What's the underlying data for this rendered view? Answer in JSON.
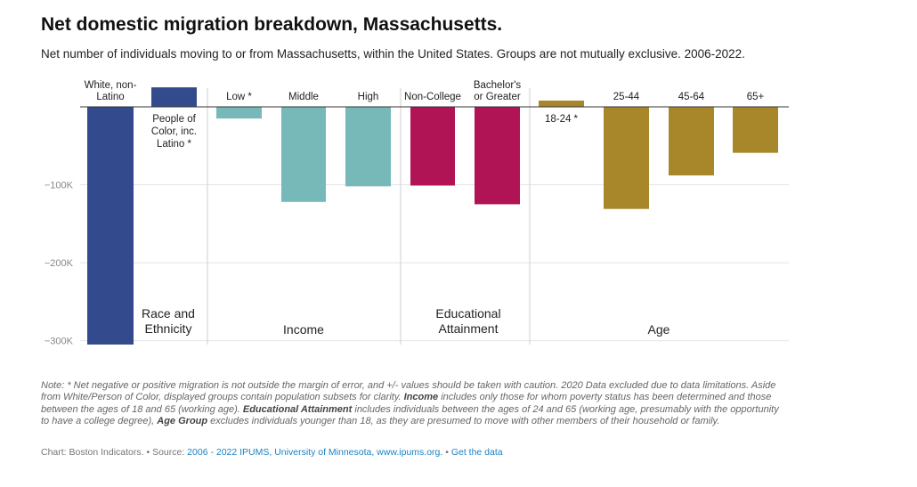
{
  "header": {
    "title": "Net domestic migration breakdown, Massachusetts.",
    "subtitle": "Net number of individuals moving to or from Massachusetts, within the United States. Groups are not mutually exclusive. 2006-2022."
  },
  "chart_data": {
    "type": "bar",
    "title": "Net domestic migration breakdown, Massachusetts.",
    "ylabel": "",
    "xlabel": "",
    "ylim": [
      -305000,
      22000
    ],
    "ytick_values": [
      -100000,
      -200000,
      -300000
    ],
    "ytick_labels": [
      "−100K",
      "−200K",
      "−300K"
    ],
    "grid": true,
    "groups": [
      {
        "name": "Race and Ethnicity",
        "color": "#334a8c",
        "categories": [
          "White, non-Latino",
          "People of Color, inc. Latino *"
        ],
        "values": [
          -305000,
          25000
        ]
      },
      {
        "name": "Income",
        "color": "#77b9b9",
        "categories": [
          "Low *",
          "Middle",
          "High"
        ],
        "values": [
          -15000,
          -122000,
          -102000
        ]
      },
      {
        "name": "Educational Attainment",
        "color": "#b01454",
        "categories": [
          "Non-College",
          "Bachelor's or Greater"
        ],
        "values": [
          -101000,
          -125000
        ]
      },
      {
        "name": "Age",
        "color": "#a8872a",
        "categories": [
          "18-24 *",
          "25-44",
          "45-64",
          "65+"
        ],
        "values": [
          8000,
          -131000,
          -88000,
          -59000
        ]
      }
    ]
  },
  "footer": {
    "note_1": "Note: * Net negative or positive migration is not outside the margin of error, and +/- values should be taken with caution. 2020 Data excluded due to data limitations. Aside from White/Person of Color, displayed groups contain population subsets for clarity. ",
    "note_income_label": "Income",
    "note_2": " includes only those for whom poverty status has been determined and those between the ages of 18 and 65 (working age). ",
    "note_edu_label": "Educational Attainment",
    "note_3": " includes individuals between the ages of 24 and 65 (working age, presumably with the opportunity to have a college degree), ",
    "note_age_label": "Age Group",
    "note_4": " excludes individuals younger than 18, as they are presumed to move with other members of their household or family.",
    "credit_prefix": "Chart: Boston Indicators. • Source: ",
    "source_link": "2006 - 2022 IPUMS, University of Minnesota, www.ipums.org.",
    "separator": " • ",
    "get_data_link": "Get the data"
  }
}
